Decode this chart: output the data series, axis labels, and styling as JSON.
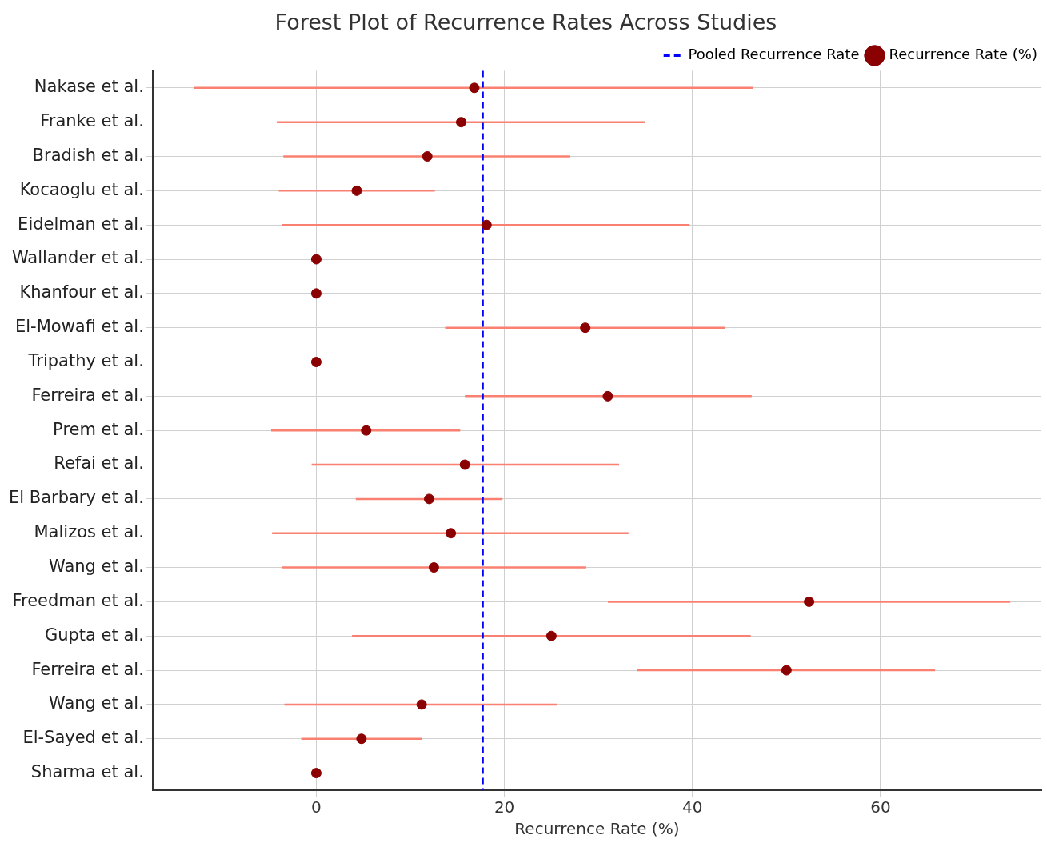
{
  "chart_data": {
    "type": "scatter",
    "orientation": "horizontal",
    "title": "Forest Plot of Recurrence Rates Across Studies",
    "xlabel": "Recurrence Rate (%)",
    "categories": [
      "Nakase et al.",
      "Franke et al.",
      "Bradish et al.",
      "Kocaoglu et al.",
      "Eidelman et al.",
      "Wallander et al.",
      "Khanfour et al.",
      "El-Mowafi et al.",
      "Tripathy et al.",
      "Ferreira et al.",
      "Prem et al.",
      "Refai et al.",
      "El Barbary et al.",
      "Malizos et al.",
      "Wang et al.",
      "Freedman et al.",
      "Gupta et al.",
      "Ferreira et al.",
      "Wang et al.",
      "El-Sayed et al.",
      "Sharma et al."
    ],
    "series": [
      {
        "name": "Recurrence Rate (%)",
        "color": "#8b0000",
        "values": [
          16.8,
          15.4,
          11.8,
          4.3,
          18.1,
          0,
          0,
          28.6,
          0,
          31.0,
          5.3,
          15.8,
          12.0,
          14.3,
          12.5,
          52.4,
          25.0,
          50.0,
          11.2,
          4.8,
          0
        ],
        "errors": [
          [
            -13.0,
            46.4
          ],
          [
            -4.2,
            35.0
          ],
          [
            -3.5,
            27.0
          ],
          [
            -4.0,
            12.6
          ],
          [
            -3.7,
            39.7
          ],
          null,
          null,
          [
            13.7,
            43.5
          ],
          null,
          [
            15.8,
            46.3
          ],
          [
            -4.8,
            15.3
          ],
          [
            -0.5,
            32.2
          ],
          [
            4.2,
            19.8
          ],
          [
            -4.7,
            33.2
          ],
          [
            -3.7,
            28.7
          ],
          [
            31.0,
            73.8
          ],
          [
            3.8,
            46.2
          ],
          [
            34.1,
            65.8
          ],
          [
            -3.4,
            25.6
          ],
          [
            -1.6,
            11.2
          ],
          null
        ]
      }
    ],
    "ref_lines": [
      {
        "axis": "x",
        "value": 17.7,
        "label": "Pooled Recurrence Rate",
        "color": "#0000ff",
        "line_style": "dashed"
      }
    ],
    "xlim": [
      -17.4,
      77.1
    ],
    "xticks": [
      0,
      20,
      40,
      60
    ],
    "grid": true,
    "legend": "top right",
    "marker": "circle"
  }
}
